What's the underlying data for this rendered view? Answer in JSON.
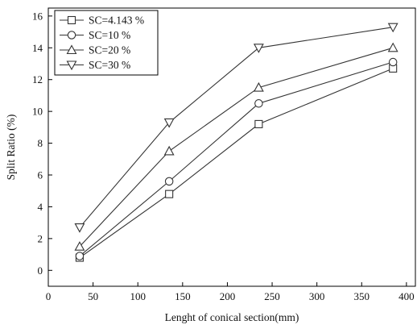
{
  "chart_data": {
    "type": "line",
    "x": [
      35,
      135,
      235,
      385
    ],
    "xlabel": "Lenght of conical section(mm)",
    "ylabel": "Split Ratio (%)",
    "xlim": [
      0,
      410
    ],
    "ylim": [
      -1,
      16.5
    ],
    "xticks": [
      0,
      50,
      100,
      150,
      200,
      250,
      300,
      350,
      400
    ],
    "yticks": [
      0,
      2,
      4,
      6,
      8,
      10,
      12,
      14,
      16
    ],
    "grid": false,
    "legend_position": "top-left",
    "series": [
      {
        "name": "SC=4.143 %",
        "marker": "square",
        "color": "#333333",
        "values": [
          0.8,
          4.8,
          9.2,
          12.7
        ]
      },
      {
        "name": "SC=10 %",
        "marker": "circle",
        "color": "#333333",
        "values": [
          0.9,
          5.6,
          10.5,
          13.1
        ]
      },
      {
        "name": "SC=20 %",
        "marker": "triangle-up",
        "color": "#333333",
        "values": [
          1.5,
          7.5,
          11.5,
          14.0
        ]
      },
      {
        "name": "SC=30 %",
        "marker": "triangle-down",
        "color": "#333333",
        "values": [
          2.7,
          9.3,
          14.0,
          15.3
        ]
      }
    ]
  }
}
